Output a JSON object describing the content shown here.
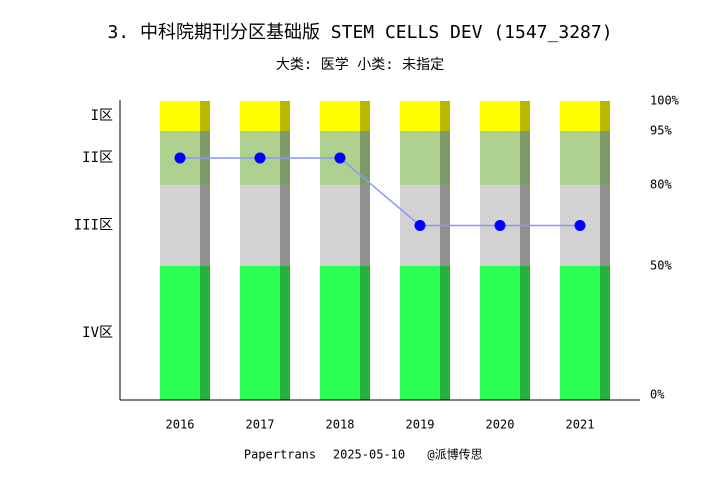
{
  "chart_data": {
    "type": "zone-bar-line",
    "title": "3. 中科院期刊分区基础版 STEM CELLS DEV (1547_3287)",
    "subtitle": "大类: 医学 小类: 未指定",
    "footer": [
      "Papertrans",
      "2025-05-10",
      "@派博传思"
    ],
    "categories": [
      "2016",
      "2017",
      "2018",
      "2019",
      "2020",
      "2021"
    ],
    "zones": [
      {
        "name": "IV区",
        "from": 0,
        "to": 50,
        "color": "#2eff55",
        "shade": "#22b23d"
      },
      {
        "name": "III区",
        "from": 50,
        "to": 80,
        "color": "#d3d1d3",
        "shade": "#929192"
      },
      {
        "name": "II区",
        "from": 80,
        "to": 95,
        "color": "#aed18f",
        "shade": "#7f9a6a"
      },
      {
        "name": "I区",
        "from": 95,
        "to": 100,
        "color": "#ffff00",
        "shade": "#b8b800"
      }
    ],
    "series": [
      {
        "name": "分区",
        "color": "#0000ff",
        "line_color": "#8a96ff",
        "values": [
          87.5,
          87.5,
          87.5,
          65,
          65,
          65
        ]
      }
    ],
    "ylim": [
      0,
      100
    ],
    "yticks": [
      {
        "value": 0,
        "label": "0%"
      },
      {
        "value": 50,
        "label": "50%"
      },
      {
        "value": 80,
        "label": "80%"
      },
      {
        "value": 95,
        "label": "95%"
      },
      {
        "value": 100,
        "label": "100%"
      }
    ]
  }
}
